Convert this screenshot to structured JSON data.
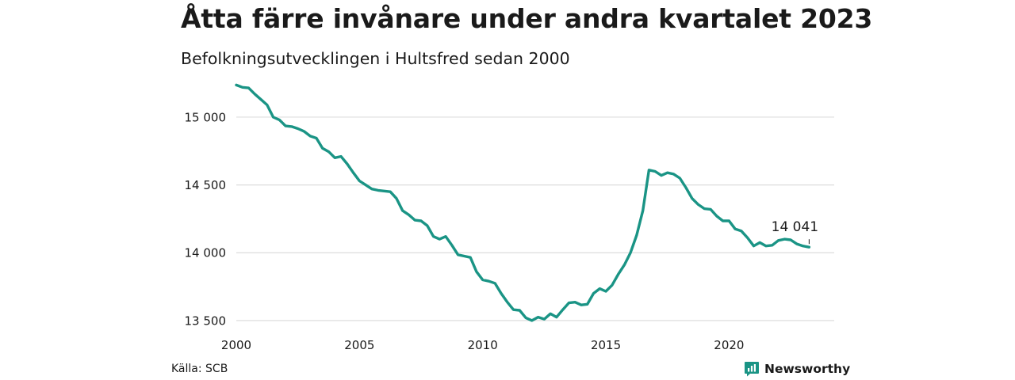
{
  "header": {
    "title": "Åtta färre invånare under andra kvartalet 2023",
    "subtitle": "Befolkningsutvecklingen i Hultsfred sedan 2000"
  },
  "footer": {
    "source": "Källa: SCB",
    "brand": "Newsworthy",
    "brand_icon": "bar-chart-logo-icon"
  },
  "colors": {
    "line": "#1a9485",
    "grid": "#dddddd",
    "brand": "#1a9485"
  },
  "chart_data": {
    "type": "line",
    "title": "Åtta färre invånare under andra kvartalet 2023",
    "subtitle": "Befolkningsutvecklingen i Hultsfred sedan 2000",
    "xlabel": "",
    "ylabel": "",
    "xlim": [
      2000,
      2024.3
    ],
    "ylim": [
      13470,
      15280
    ],
    "x_ticks": [
      2000,
      2005,
      2010,
      2015,
      2020
    ],
    "y_ticks": [
      13500,
      14000,
      14500,
      15000
    ],
    "y_tick_labels": [
      "13 500",
      "14 000",
      "14 500",
      "15 000"
    ],
    "grid": true,
    "legend": "none",
    "end_label": "14 041",
    "series": [
      {
        "x": [
          2000.0,
          2000.25,
          2000.5,
          2000.75,
          2001.0,
          2001.25,
          2001.5,
          2001.75,
          2002.0,
          2002.25,
          2002.5,
          2002.75,
          2003.0,
          2003.25,
          2003.5,
          2003.75,
          2004.0,
          2004.25,
          2004.5,
          2004.75,
          2005.0,
          2005.25,
          2005.5,
          2005.75,
          2006.0,
          2006.25,
          2006.5,
          2006.75,
          2007.0,
          2007.25,
          2007.5,
          2007.75,
          2008.0,
          2008.25,
          2008.5,
          2008.75,
          2009.0,
          2009.25,
          2009.5,
          2009.75,
          2010.0,
          2010.25,
          2010.5,
          2010.75,
          2011.0,
          2011.25,
          2011.5,
          2011.75,
          2012.0,
          2012.25,
          2012.5,
          2012.75,
          2013.0,
          2013.25,
          2013.5,
          2013.75,
          2014.0,
          2014.25,
          2014.5,
          2014.75,
          2015.0,
          2015.25,
          2015.5,
          2015.75,
          2016.0,
          2016.25,
          2016.5,
          2016.75,
          2017.0,
          2017.25,
          2017.5,
          2017.75,
          2018.0,
          2018.25,
          2018.5,
          2018.75,
          2019.0,
          2019.25,
          2019.5,
          2019.75,
          2020.0,
          2020.25,
          2020.5,
          2020.75,
          2021.0,
          2021.25,
          2021.5,
          2021.75,
          2022.0,
          2022.25,
          2022.5,
          2022.75,
          2023.0,
          2023.25
        ],
        "y": [
          15237,
          15220,
          15215,
          15170,
          15130,
          15090,
          15000,
          14980,
          14935,
          14930,
          14915,
          14895,
          14860,
          14845,
          14770,
          14745,
          14700,
          14710,
          14655,
          14590,
          14530,
          14500,
          14470,
          14460,
          14455,
          14450,
          14400,
          14310,
          14280,
          14240,
          14235,
          14200,
          14120,
          14100,
          14120,
          14055,
          13985,
          13975,
          13965,
          13860,
          13800,
          13790,
          13775,
          13700,
          13635,
          13580,
          13575,
          13520,
          13500,
          13525,
          13510,
          13550,
          13525,
          13580,
          13630,
          13635,
          13615,
          13620,
          13700,
          13735,
          13715,
          13760,
          13840,
          13910,
          14000,
          14130,
          14310,
          14610,
          14600,
          14570,
          14590,
          14580,
          14550,
          14480,
          14400,
          14355,
          14325,
          14320,
          14270,
          14235,
          14235,
          14175,
          14160,
          14110,
          14050,
          14075,
          14050,
          14055,
          14090,
          14100,
          14095,
          14065,
          14050,
          14041
        ]
      }
    ]
  }
}
